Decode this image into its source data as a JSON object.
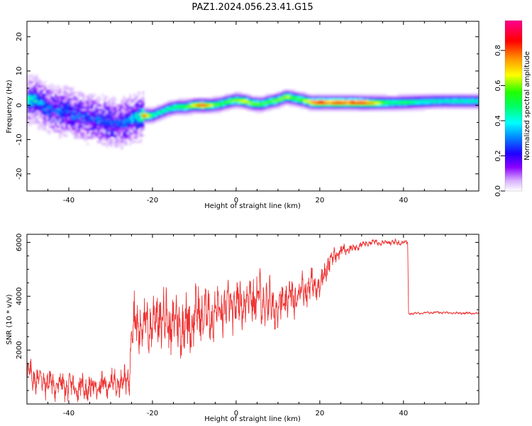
{
  "figure_title": "PAZ1.2024.056.23.41.G15",
  "chart_data": [
    {
      "type": "heatmap",
      "title": "",
      "xlabel": "Height of straight line (km)",
      "ylabel": "Frequency (Hz)",
      "xlim": [
        -50,
        58
      ],
      "ylim": [
        -25,
        24.5
      ],
      "xticks": [
        -40,
        -20,
        0,
        20,
        40
      ],
      "xtick_labels": [
        "-40",
        "-20",
        "0",
        "20",
        "40"
      ],
      "yticks": [
        -20,
        -10,
        0,
        10,
        20
      ],
      "ytick_labels": [
        "-20",
        "-10",
        "0",
        "10",
        "20"
      ],
      "grid": false,
      "colorbar": {
        "label": "Normalized spectral amplitude",
        "range": [
          0,
          0.97
        ],
        "ticks": [
          0.0,
          0.2,
          0.4,
          0.6,
          0.8
        ],
        "tick_labels": [
          "0.0",
          "0.2",
          "0.4",
          "0.6",
          "0.8"
        ],
        "colormap": "rainbow-white"
      },
      "ridge": {
        "x": [
          -48,
          -46,
          -44,
          -42,
          -40,
          -38,
          -36,
          -34,
          -32,
          -30,
          -28,
          -26,
          -24,
          -22,
          -20,
          -18,
          -16,
          -14,
          -12,
          -10,
          -8,
          -6,
          -4,
          -2,
          0,
          2,
          4,
          6,
          8,
          10,
          12,
          14,
          16,
          18,
          20,
          22,
          24,
          26,
          28,
          30,
          32,
          34,
          36,
          38,
          40,
          42,
          44,
          46,
          48,
          50,
          52,
          54,
          56,
          58
        ],
        "frequency": [
          1.5,
          0,
          -1,
          -2,
          -1.5,
          -3,
          -3.5,
          -4,
          -4.5,
          -5,
          -5.5,
          -4.5,
          -3.5,
          -3,
          -3,
          -2,
          -1,
          -0.5,
          -0.5,
          0,
          0,
          0,
          0.3,
          1,
          1.5,
          1.2,
          0.5,
          0.3,
          1,
          1.5,
          2.5,
          2,
          1.5,
          0.8,
          0.8,
          0.8,
          0.8,
          0.8,
          0.8,
          0.7,
          0.7,
          0.7,
          0.7,
          0.7,
          0.8,
          0.9,
          1,
          1.1,
          1.2,
          1.2,
          1.2,
          1.2,
          1.2,
          1.2
        ],
        "amplitude": [
          0.55,
          0.35,
          0.3,
          0.3,
          0.28,
          0.3,
          0.25,
          0.28,
          0.3,
          0.3,
          0.3,
          0.35,
          0.5,
          0.85,
          0.45,
          0.42,
          0.45,
          0.5,
          0.55,
          0.7,
          0.9,
          0.6,
          0.55,
          0.55,
          0.6,
          0.7,
          0.6,
          0.55,
          0.55,
          0.6,
          0.6,
          0.55,
          0.6,
          0.75,
          0.9,
          0.75,
          0.9,
          0.8,
          0.85,
          0.9,
          0.75,
          0.65,
          0.5,
          0.45,
          0.5,
          0.45,
          0.4,
          0.4,
          0.4,
          0.38,
          0.4,
          0.4,
          0.4,
          0.4
        ]
      }
    },
    {
      "type": "line",
      "title": "",
      "xlabel": "Height of straight line (km)",
      "ylabel": "SNR (10 * v/v)",
      "xlim": [
        -50,
        58
      ],
      "ylim": [
        0,
        6300
      ],
      "xticks": [
        -40,
        -20,
        0,
        20,
        40
      ],
      "xtick_labels": [
        "-40",
        "-20",
        "0",
        "20",
        "40"
      ],
      "yticks": [
        2000,
        4000,
        6000
      ],
      "ytick_labels": [
        "2000",
        "4000",
        "6000"
      ],
      "grid": false,
      "series": [
        {
          "color": "#ee3333",
          "x": [
            -50,
            -48,
            -46,
            -44,
            -42,
            -40,
            -38,
            -36,
            -34,
            -32,
            -30,
            -28,
            -26,
            -25.5,
            -25,
            -24,
            -22,
            -20,
            -18,
            -16,
            -14,
            -12,
            -10,
            -8,
            -6,
            -4,
            -2,
            0,
            2,
            4,
            6,
            8,
            10,
            12,
            14,
            16,
            18,
            20,
            22,
            24,
            26,
            28,
            30,
            32,
            34,
            36,
            38,
            40,
            41,
            41.2,
            44,
            48,
            52,
            56,
            58
          ],
          "y": [
            1100,
            1000,
            850,
            750,
            700,
            650,
            600,
            600,
            600,
            650,
            750,
            800,
            900,
            1000,
            2900,
            3000,
            2900,
            3000,
            3300,
            3000,
            3000,
            2900,
            3200,
            3400,
            3300,
            3400,
            3600,
            3700,
            3800,
            4000,
            3800,
            3700,
            3600,
            3900,
            3900,
            4300,
            4400,
            4400,
            5200,
            5600,
            5700,
            5800,
            5900,
            6000,
            6000,
            6000,
            6000,
            6000,
            6000,
            3350,
            3380,
            3400,
            3380,
            3370,
            3370
          ],
          "fluctuation": [
            500,
            500,
            500,
            500,
            450,
            450,
            450,
            450,
            450,
            450,
            450,
            450,
            500,
            500,
            900,
            1000,
            900,
            900,
            1000,
            1000,
            1000,
            1000,
            1000,
            950,
            900,
            850,
            800,
            800,
            800,
            900,
            900,
            800,
            750,
            700,
            650,
            600,
            550,
            500,
            400,
            250,
            200,
            150,
            120,
            100,
            100,
            100,
            100,
            100,
            100,
            40,
            40,
            40,
            40,
            40,
            40
          ]
        }
      ]
    }
  ]
}
